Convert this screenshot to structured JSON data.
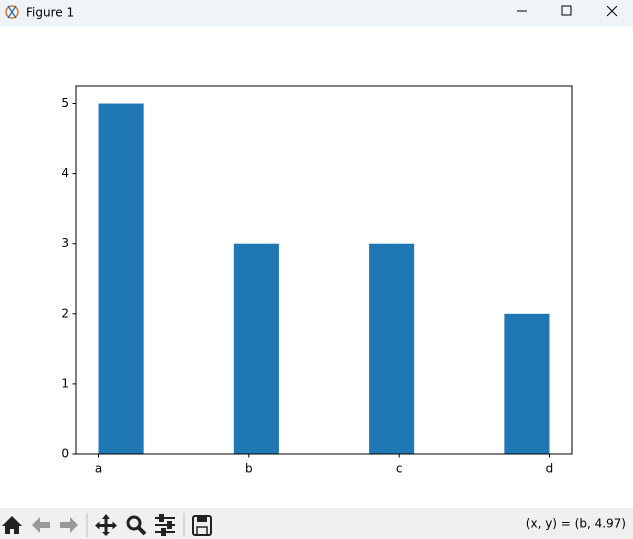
{
  "window": {
    "title": "Figure 1",
    "status": "(x, y) = (b, 4.97)"
  },
  "chart_data": {
    "type": "histogram",
    "bins": [
      0,
      0.3,
      0.6,
      0.9,
      1.2,
      1.5,
      1.8,
      2.1,
      2.4,
      2.7,
      3
    ],
    "values": [
      5,
      0,
      0,
      3,
      0,
      0,
      3,
      0,
      0,
      2
    ],
    "color": "#1f77b4",
    "xlim": [
      -0.15,
      3.15
    ],
    "xticks": [
      {
        "value": 0,
        "label": "a"
      },
      {
        "value": 1,
        "label": "b"
      },
      {
        "value": 2,
        "label": "c"
      },
      {
        "value": 3,
        "label": "d"
      }
    ],
    "ylim": [
      0,
      5.25
    ],
    "yticks": [
      0,
      1,
      2,
      3,
      4,
      5
    ],
    "grid": false
  }
}
